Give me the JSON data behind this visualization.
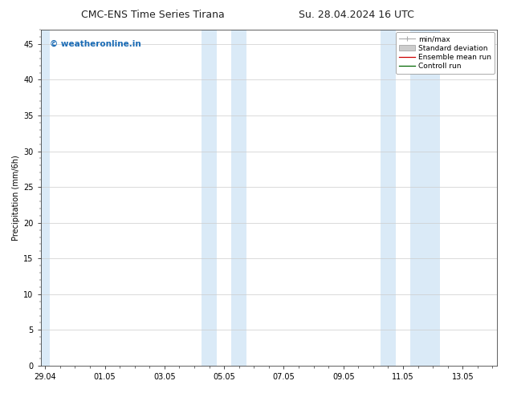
{
  "title_left": "CMC-ENS Time Series Tirana",
  "title_right": "Su. 28.04.2024 16 UTC",
  "ylabel": "Precipitation (mm/6h)",
  "yticks": [
    0,
    5,
    10,
    15,
    20,
    25,
    30,
    35,
    40,
    45
  ],
  "ylim": [
    0,
    47
  ],
  "xtick_labels": [
    "29.04",
    "01.05",
    "03.05",
    "05.05",
    "07.05",
    "09.05",
    "11.05",
    "13.05"
  ],
  "xtick_positions": [
    0,
    2,
    4,
    6,
    8,
    10,
    12,
    14
  ],
  "xmin": -0.15,
  "xmax": 15.15,
  "shaded_regions": [
    {
      "xstart": -0.15,
      "xend": 0.15
    },
    {
      "xstart": 5.25,
      "xend": 5.75
    },
    {
      "xstart": 6.25,
      "xend": 6.75
    },
    {
      "xstart": 11.25,
      "xend": 11.75
    },
    {
      "xstart": 12.25,
      "xend": 13.25
    }
  ],
  "shade_color": "#daeaf7",
  "watermark_text": "© weatheronline.in",
  "watermark_color": "#1a6bb5",
  "watermark_fontsize": 7.5,
  "legend_labels": [
    "min/max",
    "Standard deviation",
    "Ensemble mean run",
    "Controll run"
  ],
  "legend_minmax_color": "#aaaaaa",
  "legend_std_color": "#cccccc",
  "legend_ensemble_color": "#cc0000",
  "legend_control_color": "#006600",
  "bg_color": "#ffffff",
  "grid_color": "#cccccc",
  "title_fontsize": 9,
  "axis_fontsize": 7,
  "ylabel_fontsize": 7,
  "legend_fontsize": 6.5
}
